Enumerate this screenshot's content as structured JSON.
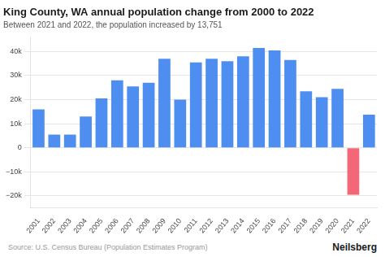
{
  "chart_data": {
    "type": "bar",
    "title": "King County, WA annual population change from 2000 to 2022",
    "subtitle": "Between 2021 and 2022, the population increased by 13,751",
    "annotations": [
      "Source: U.S. Census Bureau (Population Estimates Program)",
      "Neilsberg"
    ],
    "categories": [
      "2001",
      "2002",
      "2003",
      "2004",
      "2005",
      "2006",
      "2007",
      "2008",
      "2009",
      "2010",
      "2011",
      "2012",
      "2013",
      "2014",
      "2015",
      "2016",
      "2017",
      "2018",
      "2019",
      "2020",
      "2021",
      "2022"
    ],
    "values": [
      16000,
      5500,
      5500,
      13000,
      20500,
      28000,
      25500,
      27000,
      37000,
      20000,
      35500,
      37000,
      36000,
      38000,
      41500,
      40500,
      36500,
      23500,
      21000,
      24500,
      -19500,
      13751
    ],
    "colors": [
      "#4d8ef0",
      "#4d8ef0",
      "#4d8ef0",
      "#4d8ef0",
      "#4d8ef0",
      "#4d8ef0",
      "#4d8ef0",
      "#4d8ef0",
      "#4d8ef0",
      "#4d8ef0",
      "#4d8ef0",
      "#4d8ef0",
      "#4d8ef0",
      "#4d8ef0",
      "#4d8ef0",
      "#4d8ef0",
      "#4d8ef0",
      "#4d8ef0",
      "#4d8ef0",
      "#4d8ef0",
      "#f26878",
      "#4d8ef0"
    ],
    "ylim": [
      -25000,
      46000
    ],
    "yticks": [
      {
        "value": -20000,
        "label": "−20k"
      },
      {
        "value": -10000,
        "label": "−10k"
      },
      0,
      {
        "value": 10000,
        "label": "10k"
      },
      {
        "value": 20000,
        "label": "20k"
      },
      {
        "value": 30000,
        "label": "30k"
      },
      {
        "value": 40000,
        "label": "40k"
      }
    ],
    "grid": true
  }
}
